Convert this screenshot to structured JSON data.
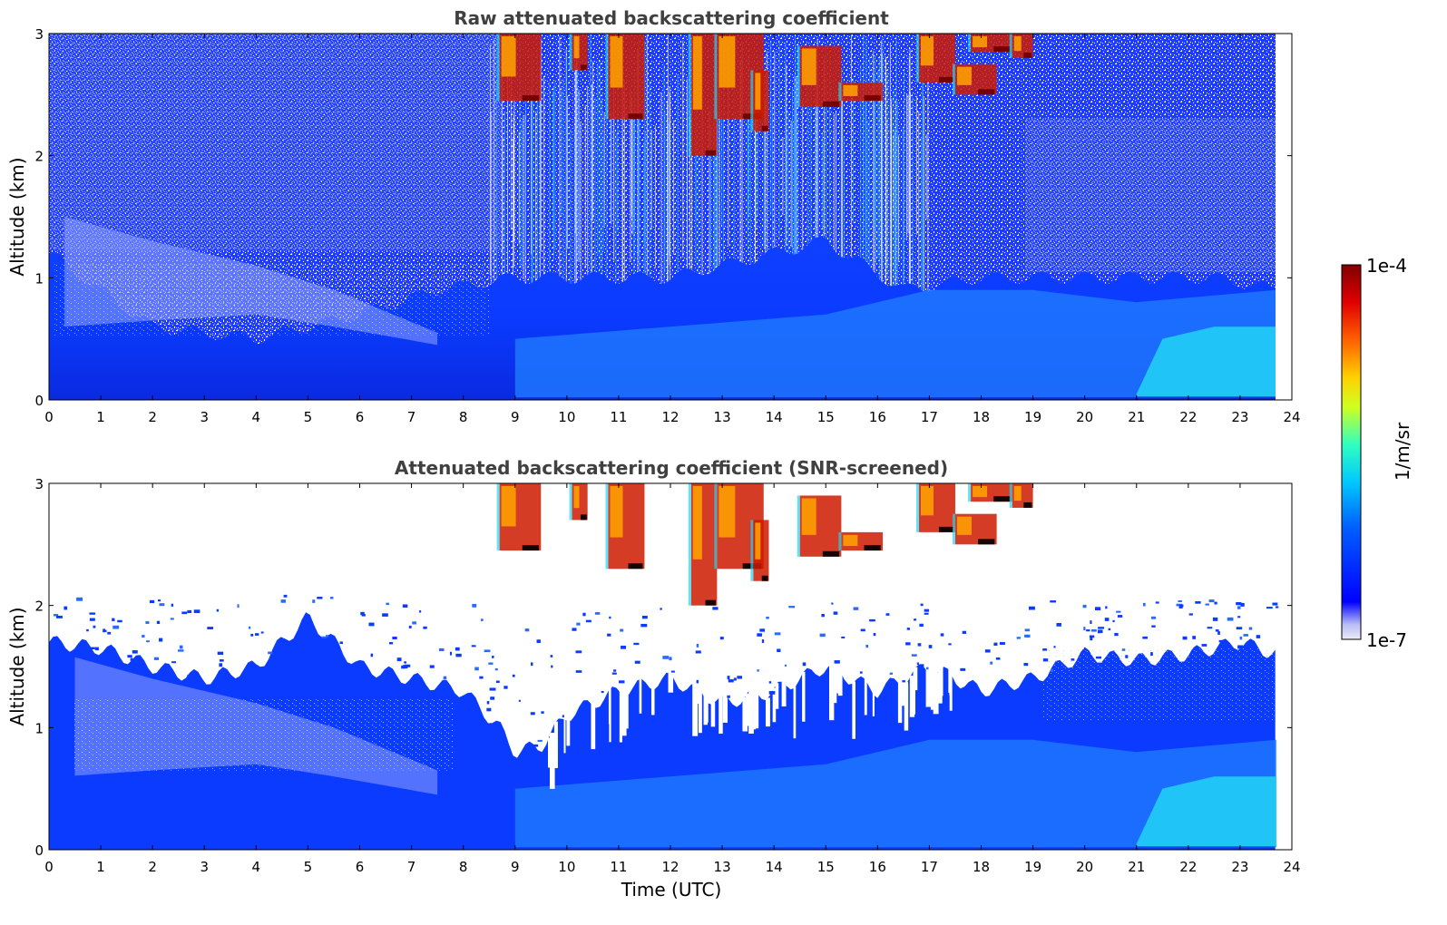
{
  "chart_data": [
    {
      "type": "heatmap",
      "title": "Raw attenuated backscattering coefficient",
      "xlabel": "",
      "ylabel": "Altitude (km)",
      "xlim": [
        0,
        24
      ],
      "ylim": [
        0,
        3
      ],
      "x_ticks": [
        "0",
        "1",
        "2",
        "3",
        "4",
        "5",
        "6",
        "7",
        "8",
        "9",
        "10",
        "11",
        "12",
        "13",
        "14",
        "15",
        "16",
        "17",
        "18",
        "19",
        "20",
        "21",
        "22",
        "23",
        "24"
      ],
      "y_ticks": [
        "0",
        "1",
        "2",
        "3"
      ],
      "data_end_hour": 23.7,
      "layers": [
        {
          "feature": "boundary layer aerosol (high backscatter, blue)",
          "x_range": [
            0,
            23.7
          ],
          "top_km": [
            1.2,
            0.6,
            0.5,
            0.7,
            0.9,
            1.0,
            1.0,
            1.3,
            0.9,
            1.0,
            1.0,
            1.0,
            1.0
          ]
        },
        {
          "feature": "residual layer aerosol",
          "x_range": [
            0.2,
            7.5
          ],
          "alt_range_km": [
            0.6,
            1.6
          ]
        },
        {
          "feature": "scattered clouds (red/orange)",
          "x_range": [
            8.7,
            19.0
          ],
          "alt_range_km": [
            2.2,
            3.0
          ]
        },
        {
          "feature": "enhanced near-surface aerosol (cyan)",
          "x_range": [
            21.0,
            23.7
          ],
          "alt_range_km": [
            0.0,
            0.8
          ]
        }
      ]
    },
    {
      "type": "heatmap",
      "title": "Attenuated backscattering coefficient (SNR-screened)",
      "xlabel": "Time (UTC)",
      "ylabel": "Altitude (km)",
      "xlim": [
        0,
        24
      ],
      "ylim": [
        0,
        3
      ],
      "x_ticks": [
        "0",
        "1",
        "2",
        "3",
        "4",
        "5",
        "6",
        "7",
        "8",
        "9",
        "10",
        "11",
        "12",
        "13",
        "14",
        "15",
        "16",
        "17",
        "18",
        "19",
        "20",
        "21",
        "22",
        "23",
        "24"
      ],
      "y_ticks": [
        "0",
        "1",
        "2",
        "3"
      ],
      "data_end_hour": 23.7,
      "screened_top_km": {
        "x": [
          0,
          1,
          2,
          3,
          4,
          5,
          6,
          7,
          8,
          8.7,
          9,
          9.5,
          10,
          11,
          12,
          13,
          14,
          15,
          16,
          17,
          18,
          19,
          20,
          21,
          22,
          23,
          23.7
        ],
        "y": [
          1.7,
          1.65,
          1.5,
          1.4,
          1.5,
          1.9,
          1.5,
          1.4,
          1.3,
          1.0,
          0.8,
          0.85,
          1.1,
          1.3,
          1.4,
          1.2,
          1.3,
          1.5,
          1.3,
          1.5,
          1.3,
          1.4,
          1.6,
          1.55,
          1.6,
          1.7,
          1.6
        ]
      }
    }
  ],
  "colorbar": {
    "label": "1/m/sr",
    "max_label": "1e-4",
    "min_label": "1e-7",
    "range": [
      1e-07,
      0.0001
    ],
    "scale": "log",
    "colormap": "jet"
  },
  "colors": {
    "background_noise": "#1e3cff",
    "aerosol_blue": "#0a3bff",
    "aerosol_light": "#1f7bff",
    "cyan": "#22d3f5",
    "cloud_red": "#cc1a00",
    "cloud_dark": "#6b0000",
    "title_gray": "#404040"
  }
}
